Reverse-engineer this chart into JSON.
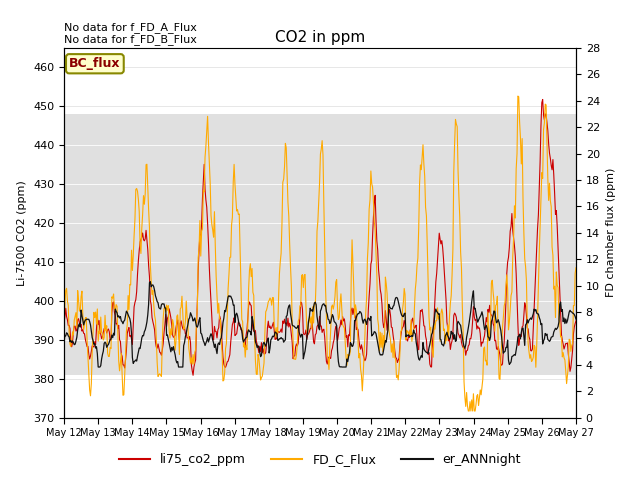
{
  "title": "CO2 in ppm",
  "ylabel_left": "Li-7500 CO2 (ppm)",
  "ylabel_right": "FD chamber flux (ppm)",
  "ylim_left": [
    370,
    465
  ],
  "ylim_right": [
    0,
    28
  ],
  "yticks_left": [
    370,
    380,
    390,
    400,
    410,
    420,
    430,
    440,
    450,
    460
  ],
  "yticks_right": [
    0,
    2,
    4,
    6,
    8,
    10,
    12,
    14,
    16,
    18,
    20,
    22,
    24,
    26,
    28
  ],
  "xticklabels": [
    "May 12",
    "May 13",
    "May 14",
    "May 15",
    "May 16",
    "May 17",
    "May 18",
    "May 19",
    "May 20",
    "May 21",
    "May 22",
    "May 23",
    "May 24",
    "May 25",
    "May 26",
    "May 27"
  ],
  "color_red": "#cc0000",
  "color_orange": "#ffaa00",
  "color_black": "#111111",
  "band_color": "#e0e0e0",
  "band_ylim": [
    381,
    448
  ],
  "annotation_text1": "No data for f_FD_A_Flux",
  "annotation_text2": "No data for f_FD_B_Flux",
  "box_label": "BC_flux",
  "legend_labels": [
    "li75_co2_ppm",
    "FD_C_Flux",
    "er_ANNnight"
  ],
  "n_points": 600
}
